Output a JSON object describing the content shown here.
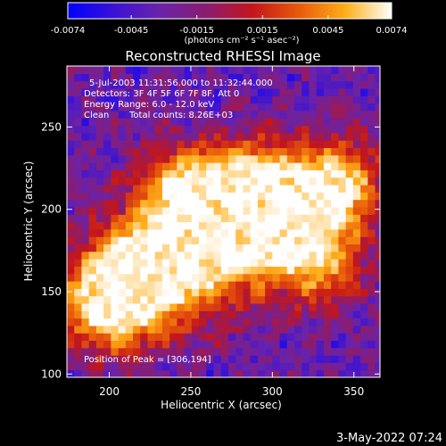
{
  "chart_data": {
    "type": "heatmap",
    "title": "Reconstructed RHESSI Image",
    "xlabel": "Heliocentric X (arcsec)",
    "ylabel": "Heliocentric Y (arcsec)",
    "xlim": [
      174,
      366
    ],
    "ylim": [
      98,
      287
    ],
    "xticks": [
      200,
      250,
      300,
      350
    ],
    "yticks": [
      100,
      150,
      200,
      250
    ],
    "colorbar": {
      "range": [
        -0.0074,
        0.0074
      ],
      "ticks": [
        -0.0074,
        -0.0045,
        -0.0015,
        0.0015,
        0.0045,
        0.0074
      ],
      "tick_labels": [
        "-0.0074",
        "-0.0045",
        "-0.0015",
        "0.0015",
        "0.0045",
        "0.0074"
      ],
      "unit_label": "(photons cm⁻² s⁻¹ asec⁻²)",
      "colors": [
        "#0000ff",
        "#3a12d6",
        "#6a23a8",
        "#8a1c70",
        "#c4161a",
        "#e85a0a",
        "#ffae18",
        "#ffffff"
      ]
    },
    "annotations": {
      "time_range": "5-Jul-2003 11:31:56.000 to 11:32:44.000",
      "detectors": "Detectors: 3F 4F 5F 6F 7F 8F, Att 0",
      "energy_range": "Energy Range: 6.0 - 12.0 keV",
      "method": "Clean",
      "total_counts": "Total counts: 8.26E+03",
      "peak": "Position of Peak = [306,194]"
    },
    "peak": {
      "x": 306,
      "y": 194
    },
    "grid": "off"
  },
  "footer": {
    "date": "3-May-2022 07:24"
  }
}
